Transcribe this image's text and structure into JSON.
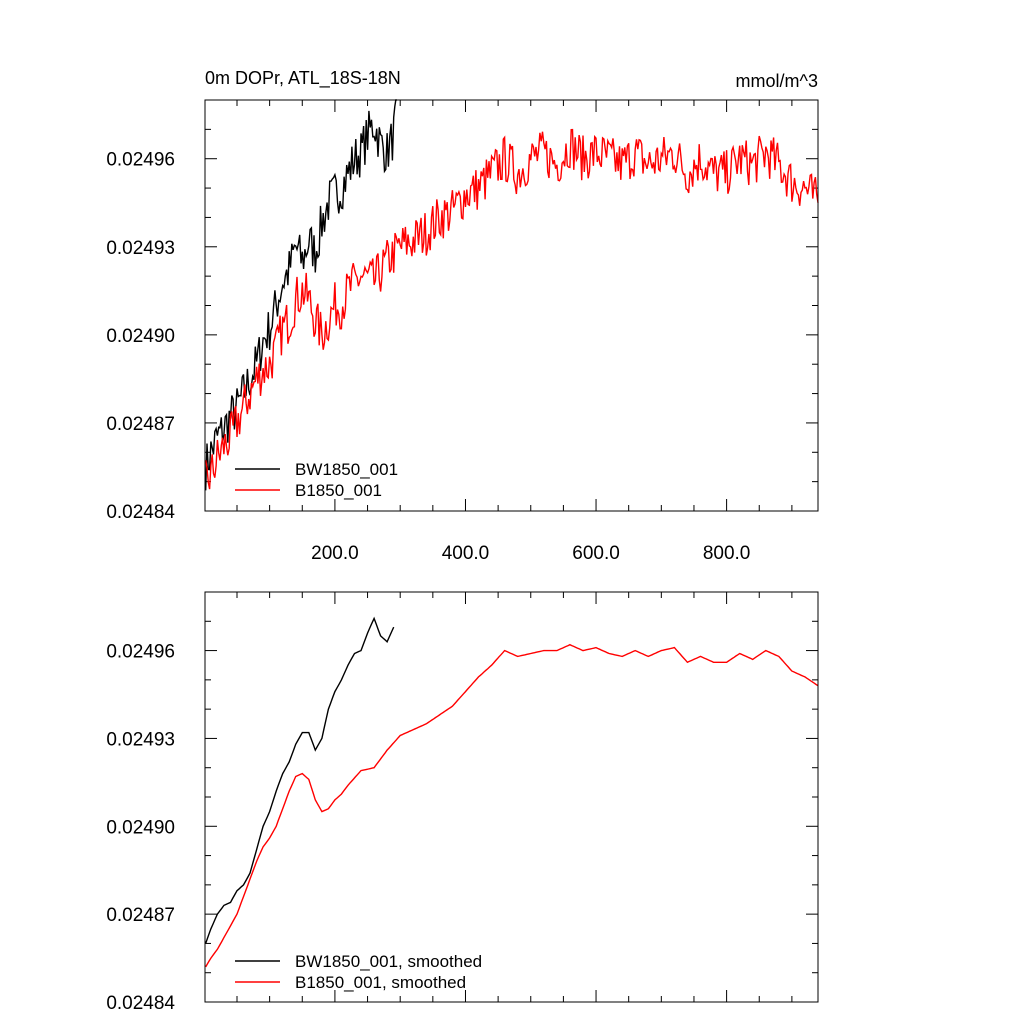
{
  "chart_data": [
    {
      "type": "line",
      "title_left": "0m DOPr, ATL_18S-18N",
      "title_right": "mmol/m^3",
      "xlim": [
        1,
        940
      ],
      "ylim": [
        0.02484,
        0.02498
      ],
      "x_ticks": [
        200,
        400,
        600,
        800
      ],
      "x_tick_labels": [
        "200.0",
        "400.0",
        "600.0",
        "800.0"
      ],
      "y_ticks": [
        0.02484,
        0.02487,
        0.0249,
        0.02493,
        0.02496
      ],
      "y_tick_labels": [
        "0.02484",
        "0.02487",
        "0.02490",
        "0.02493",
        "0.02496"
      ],
      "legend_position": "bottom-left",
      "series": [
        {
          "name": "BW1850_001",
          "color": "#000000",
          "x": [
            2,
            10,
            20,
            30,
            40,
            50,
            60,
            70,
            80,
            90,
            100,
            110,
            120,
            130,
            140,
            150,
            160,
            170,
            180,
            190,
            200,
            210,
            220,
            230,
            240,
            250,
            260,
            270,
            280,
            290,
            295
          ],
          "values": [
            0.024855,
            0.02486,
            0.024865,
            0.024868,
            0.024872,
            0.024875,
            0.02488,
            0.024885,
            0.02489,
            0.024898,
            0.024902,
            0.02491,
            0.024918,
            0.024922,
            0.02493,
            0.024925,
            0.024932,
            0.024928,
            0.024938,
            0.024945,
            0.024948,
            0.02495,
            0.024955,
            0.02496,
            0.024962,
            0.024968,
            0.024972,
            0.024965,
            0.024962,
            0.024968,
            0.02498
          ]
        },
        {
          "name": "B1850_001",
          "color": "#ff0000",
          "x": [
            2,
            10,
            20,
            30,
            40,
            50,
            60,
            70,
            80,
            90,
            100,
            110,
            120,
            130,
            140,
            150,
            160,
            170,
            180,
            190,
            200,
            210,
            220,
            240,
            260,
            280,
            300,
            320,
            340,
            360,
            380,
            400,
            420,
            440,
            460,
            480,
            500,
            520,
            540,
            560,
            580,
            600,
            620,
            640,
            660,
            680,
            700,
            720,
            740,
            760,
            780,
            800,
            820,
            840,
            860,
            880,
            900,
            920,
            940
          ],
          "values": [
            0.02485,
            0.024852,
            0.024858,
            0.024862,
            0.024865,
            0.02487,
            0.024875,
            0.02488,
            0.024885,
            0.024888,
            0.02489,
            0.024895,
            0.024902,
            0.024905,
            0.024912,
            0.024915,
            0.024912,
            0.024905,
            0.0249,
            0.024905,
            0.02491,
            0.02491,
            0.024915,
            0.02492,
            0.024918,
            0.024925,
            0.02493,
            0.024932,
            0.024935,
            0.02494,
            0.024942,
            0.024948,
            0.02495,
            0.024955,
            0.02496,
            0.024955,
            0.02496,
            0.024962,
            0.024958,
            0.024965,
            0.02496,
            0.024962,
            0.02496,
            0.024958,
            0.024962,
            0.024958,
            0.02496,
            0.024962,
            0.024955,
            0.02496,
            0.024955,
            0.024955,
            0.02496,
            0.024958,
            0.024962,
            0.024958,
            0.024952,
            0.02495,
            0.024945
          ]
        }
      ]
    },
    {
      "type": "line",
      "xlim": [
        1,
        940
      ],
      "ylim": [
        0.02484,
        0.02498
      ],
      "x_ticks": [
        200,
        400,
        600,
        800
      ],
      "y_ticks": [
        0.02484,
        0.02487,
        0.0249,
        0.02493,
        0.02496
      ],
      "y_tick_labels": [
        "0.02484",
        "0.02487",
        "0.02490",
        "0.02493",
        "0.02496"
      ],
      "legend_position": "bottom-left",
      "series": [
        {
          "name": "BW1850_001, smoothed",
          "color": "#000000",
          "x": [
            2,
            10,
            20,
            30,
            40,
            50,
            60,
            70,
            80,
            90,
            100,
            110,
            120,
            130,
            140,
            150,
            160,
            170,
            180,
            190,
            200,
            210,
            220,
            230,
            240,
            250,
            260,
            270,
            280,
            290
          ],
          "values": [
            0.02486,
            0.024865,
            0.02487,
            0.024873,
            0.024874,
            0.024878,
            0.02488,
            0.024884,
            0.024892,
            0.0249,
            0.024905,
            0.024912,
            0.024918,
            0.024922,
            0.024928,
            0.024932,
            0.024932,
            0.024926,
            0.02493,
            0.02494,
            0.024946,
            0.02495,
            0.024955,
            0.024959,
            0.02496,
            0.024966,
            0.024971,
            0.024965,
            0.024963,
            0.024968
          ]
        },
        {
          "name": "B1850_001, smoothed",
          "color": "#ff0000",
          "x": [
            2,
            10,
            20,
            30,
            40,
            50,
            60,
            70,
            80,
            90,
            100,
            110,
            120,
            130,
            140,
            150,
            160,
            170,
            180,
            190,
            200,
            210,
            220,
            240,
            260,
            280,
            300,
            320,
            340,
            360,
            380,
            400,
            420,
            440,
            460,
            480,
            500,
            520,
            540,
            560,
            580,
            600,
            620,
            640,
            660,
            680,
            700,
            720,
            740,
            760,
            780,
            800,
            820,
            840,
            860,
            880,
            900,
            920,
            940
          ],
          "values": [
            0.024852,
            0.024855,
            0.024858,
            0.024862,
            0.024866,
            0.02487,
            0.024876,
            0.024882,
            0.024888,
            0.024893,
            0.024896,
            0.0249,
            0.024906,
            0.024912,
            0.024917,
            0.024918,
            0.024916,
            0.024909,
            0.024905,
            0.024906,
            0.024909,
            0.024911,
            0.024914,
            0.024919,
            0.02492,
            0.024926,
            0.024931,
            0.024933,
            0.024935,
            0.024938,
            0.024941,
            0.024946,
            0.024951,
            0.024955,
            0.02496,
            0.024958,
            0.024959,
            0.02496,
            0.02496,
            0.024962,
            0.02496,
            0.024961,
            0.024959,
            0.024958,
            0.02496,
            0.024958,
            0.02496,
            0.024961,
            0.024956,
            0.024958,
            0.024956,
            0.024956,
            0.024959,
            0.024957,
            0.02496,
            0.024958,
            0.024953,
            0.024951,
            0.024948
          ]
        }
      ]
    }
  ]
}
